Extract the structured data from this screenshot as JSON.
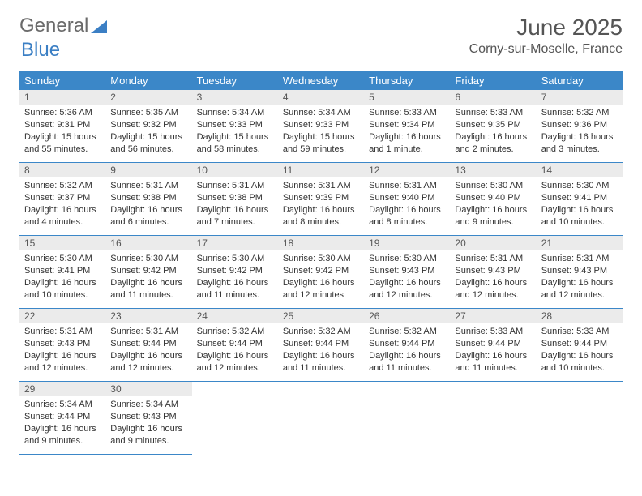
{
  "brand": {
    "general": "General",
    "blue": "Blue"
  },
  "title": "June 2025",
  "location": "Corny-sur-Moselle, France",
  "colors": {
    "header_bg": "#3b87c8",
    "header_text": "#ffffff",
    "daynum_bg": "#ebebeb",
    "cell_border": "#3b87c8",
    "page_bg": "#ffffff",
    "logo_gray": "#6a6a6a",
    "logo_blue": "#3b7fc4"
  },
  "typography": {
    "body_fontsize": 11,
    "header_fontsize": 13,
    "title_fontsize": 28,
    "location_fontsize": 16
  },
  "weekdays": [
    "Sunday",
    "Monday",
    "Tuesday",
    "Wednesday",
    "Thursday",
    "Friday",
    "Saturday"
  ],
  "days": [
    {
      "n": "1",
      "sunrise": "Sunrise: 5:36 AM",
      "sunset": "Sunset: 9:31 PM",
      "daylight": "Daylight: 15 hours and 55 minutes."
    },
    {
      "n": "2",
      "sunrise": "Sunrise: 5:35 AM",
      "sunset": "Sunset: 9:32 PM",
      "daylight": "Daylight: 15 hours and 56 minutes."
    },
    {
      "n": "3",
      "sunrise": "Sunrise: 5:34 AM",
      "sunset": "Sunset: 9:33 PM",
      "daylight": "Daylight: 15 hours and 58 minutes."
    },
    {
      "n": "4",
      "sunrise": "Sunrise: 5:34 AM",
      "sunset": "Sunset: 9:33 PM",
      "daylight": "Daylight: 15 hours and 59 minutes."
    },
    {
      "n": "5",
      "sunrise": "Sunrise: 5:33 AM",
      "sunset": "Sunset: 9:34 PM",
      "daylight": "Daylight: 16 hours and 1 minute."
    },
    {
      "n": "6",
      "sunrise": "Sunrise: 5:33 AM",
      "sunset": "Sunset: 9:35 PM",
      "daylight": "Daylight: 16 hours and 2 minutes."
    },
    {
      "n": "7",
      "sunrise": "Sunrise: 5:32 AM",
      "sunset": "Sunset: 9:36 PM",
      "daylight": "Daylight: 16 hours and 3 minutes."
    },
    {
      "n": "8",
      "sunrise": "Sunrise: 5:32 AM",
      "sunset": "Sunset: 9:37 PM",
      "daylight": "Daylight: 16 hours and 4 minutes."
    },
    {
      "n": "9",
      "sunrise": "Sunrise: 5:31 AM",
      "sunset": "Sunset: 9:38 PM",
      "daylight": "Daylight: 16 hours and 6 minutes."
    },
    {
      "n": "10",
      "sunrise": "Sunrise: 5:31 AM",
      "sunset": "Sunset: 9:38 PM",
      "daylight": "Daylight: 16 hours and 7 minutes."
    },
    {
      "n": "11",
      "sunrise": "Sunrise: 5:31 AM",
      "sunset": "Sunset: 9:39 PM",
      "daylight": "Daylight: 16 hours and 8 minutes."
    },
    {
      "n": "12",
      "sunrise": "Sunrise: 5:31 AM",
      "sunset": "Sunset: 9:40 PM",
      "daylight": "Daylight: 16 hours and 8 minutes."
    },
    {
      "n": "13",
      "sunrise": "Sunrise: 5:30 AM",
      "sunset": "Sunset: 9:40 PM",
      "daylight": "Daylight: 16 hours and 9 minutes."
    },
    {
      "n": "14",
      "sunrise": "Sunrise: 5:30 AM",
      "sunset": "Sunset: 9:41 PM",
      "daylight": "Daylight: 16 hours and 10 minutes."
    },
    {
      "n": "15",
      "sunrise": "Sunrise: 5:30 AM",
      "sunset": "Sunset: 9:41 PM",
      "daylight": "Daylight: 16 hours and 10 minutes."
    },
    {
      "n": "16",
      "sunrise": "Sunrise: 5:30 AM",
      "sunset": "Sunset: 9:42 PM",
      "daylight": "Daylight: 16 hours and 11 minutes."
    },
    {
      "n": "17",
      "sunrise": "Sunrise: 5:30 AM",
      "sunset": "Sunset: 9:42 PM",
      "daylight": "Daylight: 16 hours and 11 minutes."
    },
    {
      "n": "18",
      "sunrise": "Sunrise: 5:30 AM",
      "sunset": "Sunset: 9:42 PM",
      "daylight": "Daylight: 16 hours and 12 minutes."
    },
    {
      "n": "19",
      "sunrise": "Sunrise: 5:30 AM",
      "sunset": "Sunset: 9:43 PM",
      "daylight": "Daylight: 16 hours and 12 minutes."
    },
    {
      "n": "20",
      "sunrise": "Sunrise: 5:31 AM",
      "sunset": "Sunset: 9:43 PM",
      "daylight": "Daylight: 16 hours and 12 minutes."
    },
    {
      "n": "21",
      "sunrise": "Sunrise: 5:31 AM",
      "sunset": "Sunset: 9:43 PM",
      "daylight": "Daylight: 16 hours and 12 minutes."
    },
    {
      "n": "22",
      "sunrise": "Sunrise: 5:31 AM",
      "sunset": "Sunset: 9:43 PM",
      "daylight": "Daylight: 16 hours and 12 minutes."
    },
    {
      "n": "23",
      "sunrise": "Sunrise: 5:31 AM",
      "sunset": "Sunset: 9:44 PM",
      "daylight": "Daylight: 16 hours and 12 minutes."
    },
    {
      "n": "24",
      "sunrise": "Sunrise: 5:32 AM",
      "sunset": "Sunset: 9:44 PM",
      "daylight": "Daylight: 16 hours and 12 minutes."
    },
    {
      "n": "25",
      "sunrise": "Sunrise: 5:32 AM",
      "sunset": "Sunset: 9:44 PM",
      "daylight": "Daylight: 16 hours and 11 minutes."
    },
    {
      "n": "26",
      "sunrise": "Sunrise: 5:32 AM",
      "sunset": "Sunset: 9:44 PM",
      "daylight": "Daylight: 16 hours and 11 minutes."
    },
    {
      "n": "27",
      "sunrise": "Sunrise: 5:33 AM",
      "sunset": "Sunset: 9:44 PM",
      "daylight": "Daylight: 16 hours and 11 minutes."
    },
    {
      "n": "28",
      "sunrise": "Sunrise: 5:33 AM",
      "sunset": "Sunset: 9:44 PM",
      "daylight": "Daylight: 16 hours and 10 minutes."
    },
    {
      "n": "29",
      "sunrise": "Sunrise: 5:34 AM",
      "sunset": "Sunset: 9:44 PM",
      "daylight": "Daylight: 16 hours and 9 minutes."
    },
    {
      "n": "30",
      "sunrise": "Sunrise: 5:34 AM",
      "sunset": "Sunset: 9:43 PM",
      "daylight": "Daylight: 16 hours and 9 minutes."
    }
  ]
}
